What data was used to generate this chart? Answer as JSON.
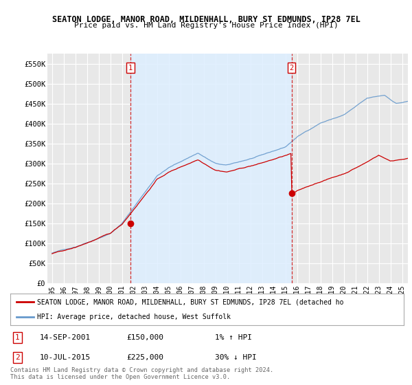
{
  "title1": "SEATON LODGE, MANOR ROAD, MILDENHALL, BURY ST EDMUNDS, IP28 7EL",
  "title2": "Price paid vs. HM Land Registry's House Price Index (HPI)",
  "ylim": [
    0,
    575000
  ],
  "yticks": [
    0,
    50000,
    100000,
    150000,
    200000,
    250000,
    300000,
    350000,
    400000,
    450000,
    500000,
    550000
  ],
  "ytick_labels": [
    "£0",
    "£50K",
    "£100K",
    "£150K",
    "£200K",
    "£250K",
    "£300K",
    "£350K",
    "£400K",
    "£450K",
    "£500K",
    "£550K"
  ],
  "sale1_price": 150000,
  "sale1_x": 2001.71,
  "sale2_price": 225000,
  "sale2_x": 2015.53,
  "legend_line1": "SEATON LODGE, MANOR ROAD, MILDENHALL, BURY ST EDMUNDS, IP28 7EL (detached ho",
  "legend_line2": "HPI: Average price, detached house, West Suffolk",
  "footer1": "Contains HM Land Registry data © Crown copyright and database right 2024.",
  "footer2": "This data is licensed under the Open Government Licence v3.0.",
  "annotation1_date": "14-SEP-2001",
  "annotation1_price": "£150,000",
  "annotation1_hpi": "1% ↑ HPI",
  "annotation2_date": "10-JUL-2015",
  "annotation2_price": "£225,000",
  "annotation2_hpi": "30% ↓ HPI",
  "red_color": "#cc0000",
  "blue_color": "#6699cc",
  "shade_color": "#ddeeff",
  "bg_color": "#ffffff",
  "plot_bg_color": "#e8e8e8"
}
